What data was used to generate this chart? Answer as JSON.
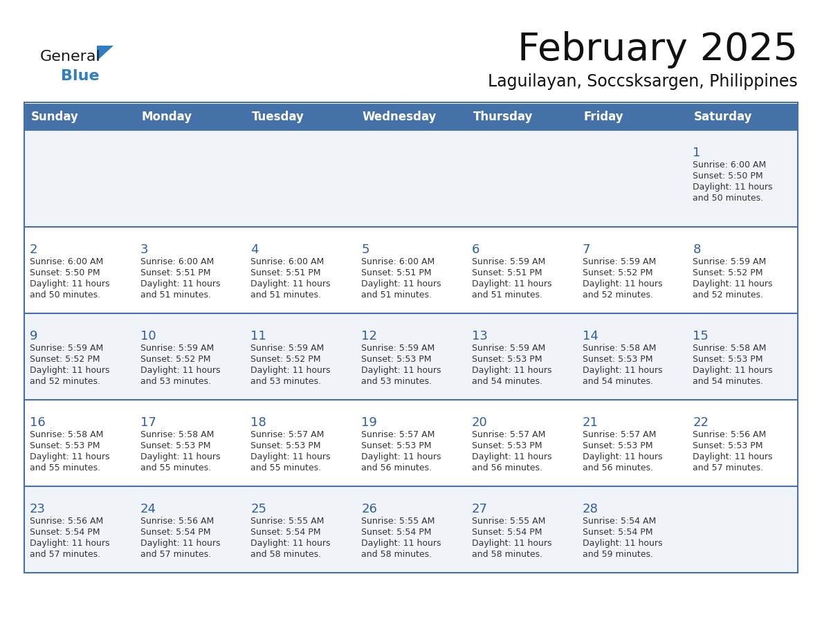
{
  "title": "February 2025",
  "subtitle": "Laguilayan, Soccsksargen, Philippines",
  "days_of_week": [
    "Sunday",
    "Monday",
    "Tuesday",
    "Wednesday",
    "Thursday",
    "Friday",
    "Saturday"
  ],
  "header_bg": "#4472A8",
  "header_text": "#FFFFFF",
  "cell_bg_light": "#F0F4F8",
  "cell_bg_white": "#FFFFFF",
  "cell_text": "#333333",
  "day_num_color": "#2E5FA3",
  "border_color": "#4472A8",
  "logo_general_color": "#1a1a1a",
  "logo_blue_color": "#2E7EC1",
  "weeks": [
    [
      {
        "day": null,
        "sunrise": null,
        "sunset": null,
        "daylight": null
      },
      {
        "day": null,
        "sunrise": null,
        "sunset": null,
        "daylight": null
      },
      {
        "day": null,
        "sunrise": null,
        "sunset": null,
        "daylight": null
      },
      {
        "day": null,
        "sunrise": null,
        "sunset": null,
        "daylight": null
      },
      {
        "day": null,
        "sunrise": null,
        "sunset": null,
        "daylight": null
      },
      {
        "day": null,
        "sunrise": null,
        "sunset": null,
        "daylight": null
      },
      {
        "day": 1,
        "sunrise": "6:00 AM",
        "sunset": "5:50 PM",
        "daylight": "11 hours and 50 minutes."
      }
    ],
    [
      {
        "day": 2,
        "sunrise": "6:00 AM",
        "sunset": "5:50 PM",
        "daylight": "11 hours and 50 minutes."
      },
      {
        "day": 3,
        "sunrise": "6:00 AM",
        "sunset": "5:51 PM",
        "daylight": "11 hours and 51 minutes."
      },
      {
        "day": 4,
        "sunrise": "6:00 AM",
        "sunset": "5:51 PM",
        "daylight": "11 hours and 51 minutes."
      },
      {
        "day": 5,
        "sunrise": "6:00 AM",
        "sunset": "5:51 PM",
        "daylight": "11 hours and 51 minutes."
      },
      {
        "day": 6,
        "sunrise": "5:59 AM",
        "sunset": "5:51 PM",
        "daylight": "11 hours and 51 minutes."
      },
      {
        "day": 7,
        "sunrise": "5:59 AM",
        "sunset": "5:52 PM",
        "daylight": "11 hours and 52 minutes."
      },
      {
        "day": 8,
        "sunrise": "5:59 AM",
        "sunset": "5:52 PM",
        "daylight": "11 hours and 52 minutes."
      }
    ],
    [
      {
        "day": 9,
        "sunrise": "5:59 AM",
        "sunset": "5:52 PM",
        "daylight": "11 hours and 52 minutes."
      },
      {
        "day": 10,
        "sunrise": "5:59 AM",
        "sunset": "5:52 PM",
        "daylight": "11 hours and 53 minutes."
      },
      {
        "day": 11,
        "sunrise": "5:59 AM",
        "sunset": "5:52 PM",
        "daylight": "11 hours and 53 minutes."
      },
      {
        "day": 12,
        "sunrise": "5:59 AM",
        "sunset": "5:53 PM",
        "daylight": "11 hours and 53 minutes."
      },
      {
        "day": 13,
        "sunrise": "5:59 AM",
        "sunset": "5:53 PM",
        "daylight": "11 hours and 54 minutes."
      },
      {
        "day": 14,
        "sunrise": "5:58 AM",
        "sunset": "5:53 PM",
        "daylight": "11 hours and 54 minutes."
      },
      {
        "day": 15,
        "sunrise": "5:58 AM",
        "sunset": "5:53 PM",
        "daylight": "11 hours and 54 minutes."
      }
    ],
    [
      {
        "day": 16,
        "sunrise": "5:58 AM",
        "sunset": "5:53 PM",
        "daylight": "11 hours and 55 minutes."
      },
      {
        "day": 17,
        "sunrise": "5:58 AM",
        "sunset": "5:53 PM",
        "daylight": "11 hours and 55 minutes."
      },
      {
        "day": 18,
        "sunrise": "5:57 AM",
        "sunset": "5:53 PM",
        "daylight": "11 hours and 55 minutes."
      },
      {
        "day": 19,
        "sunrise": "5:57 AM",
        "sunset": "5:53 PM",
        "daylight": "11 hours and 56 minutes."
      },
      {
        "day": 20,
        "sunrise": "5:57 AM",
        "sunset": "5:53 PM",
        "daylight": "11 hours and 56 minutes."
      },
      {
        "day": 21,
        "sunrise": "5:57 AM",
        "sunset": "5:53 PM",
        "daylight": "11 hours and 56 minutes."
      },
      {
        "day": 22,
        "sunrise": "5:56 AM",
        "sunset": "5:53 PM",
        "daylight": "11 hours and 57 minutes."
      }
    ],
    [
      {
        "day": 23,
        "sunrise": "5:56 AM",
        "sunset": "5:54 PM",
        "daylight": "11 hours and 57 minutes."
      },
      {
        "day": 24,
        "sunrise": "5:56 AM",
        "sunset": "5:54 PM",
        "daylight": "11 hours and 57 minutes."
      },
      {
        "day": 25,
        "sunrise": "5:55 AM",
        "sunset": "5:54 PM",
        "daylight": "11 hours and 58 minutes."
      },
      {
        "day": 26,
        "sunrise": "5:55 AM",
        "sunset": "5:54 PM",
        "daylight": "11 hours and 58 minutes."
      },
      {
        "day": 27,
        "sunrise": "5:55 AM",
        "sunset": "5:54 PM",
        "daylight": "11 hours and 58 minutes."
      },
      {
        "day": 28,
        "sunrise": "5:54 AM",
        "sunset": "5:54 PM",
        "daylight": "11 hours and 59 minutes."
      },
      {
        "day": null,
        "sunrise": null,
        "sunset": null,
        "daylight": null
      }
    ]
  ]
}
